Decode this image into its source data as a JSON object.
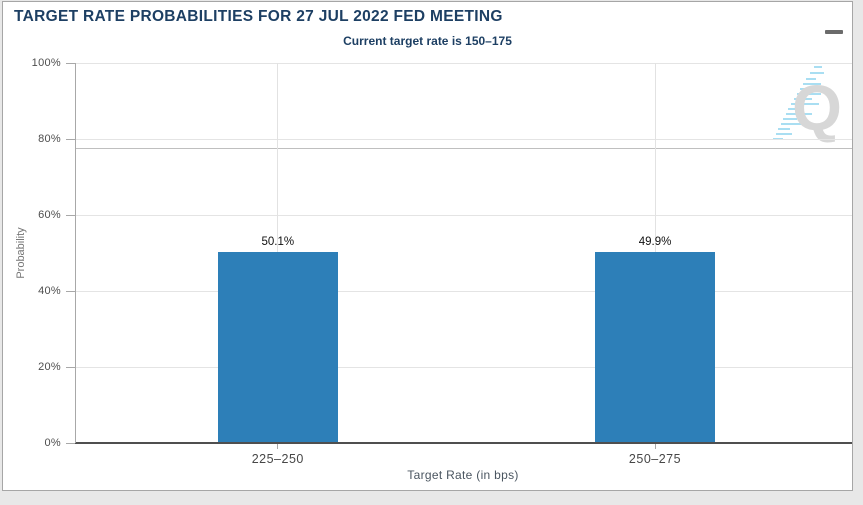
{
  "header": {
    "menu_icon": "hamburger-menu"
  },
  "chart_data": {
    "type": "bar",
    "title": "TARGET RATE PROBABILITIES FOR 27 JUL 2022 FED MEETING",
    "subtitle": "Current target rate is 150–175",
    "categories": [
      "225–250",
      "250–275"
    ],
    "values": [
      50.1,
      49.9
    ],
    "value_labels": [
      "50.1%",
      "49.9%"
    ],
    "xlabel": "Target Rate (in bps)",
    "ylabel": "Probability",
    "ylim": [
      0,
      100
    ],
    "ytick_values": [
      0,
      20,
      40,
      60,
      80,
      100
    ],
    "ytick_labels": [
      "0%",
      "20%",
      "40%",
      "60%",
      "80%",
      "100%"
    ],
    "grid": true,
    "legend": "none",
    "bar_color": "#2d7fb8",
    "value_label_color": "#111111",
    "plot_line_pct": 77.5
  },
  "watermark": {
    "letter": "Q"
  }
}
